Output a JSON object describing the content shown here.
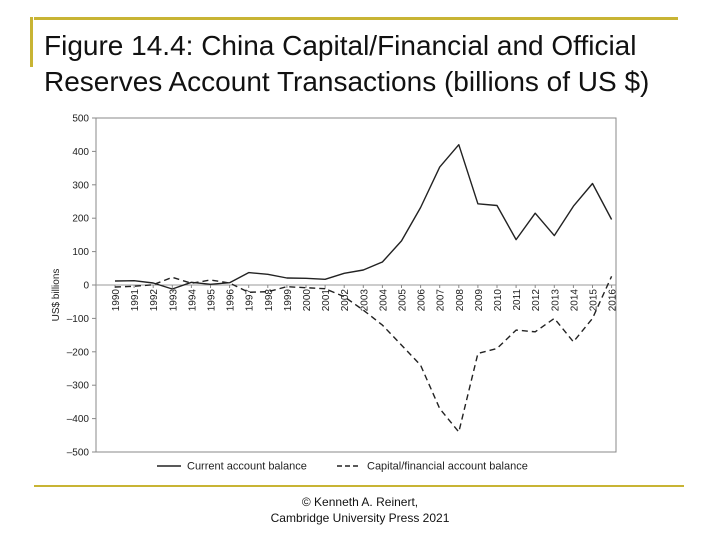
{
  "slide": {
    "title": "Figure 14.4: China Capital/Financial and Official Reserves Account Transactions (billions of US $)",
    "credit_line1": "© Kenneth A. Reinert,",
    "credit_line2": "Cambridge University Press 2021",
    "accent_color": "#c8b434"
  },
  "chart_data": {
    "type": "line",
    "title": "",
    "xlabel": "",
    "ylabel": "US$ billions",
    "ylim": [
      -500,
      500
    ],
    "yticks": [
      500,
      400,
      300,
      200,
      100,
      0,
      -100,
      -200,
      -300,
      -400,
      -500
    ],
    "ytick_labels": [
      "500",
      "400",
      "300",
      "200",
      "100",
      "0",
      "–100",
      "–200",
      "–300",
      "–400",
      "–500"
    ],
    "categories": [
      "1990",
      "1991",
      "1992",
      "1993",
      "1994",
      "1995",
      "1996",
      "1997",
      "1998",
      "1999",
      "2000",
      "2001",
      "2002",
      "2003",
      "2004",
      "2005",
      "2006",
      "2007",
      "2008",
      "2009",
      "2010",
      "2011",
      "2012",
      "2013",
      "2014",
      "2015",
      "2016"
    ],
    "legend_position": "bottom",
    "grid": false,
    "series": [
      {
        "name": "Current account balance",
        "style": "solid",
        "color": "#222222",
        "values": [
          12,
          13,
          6,
          -12,
          8,
          2,
          7,
          37,
          32,
          21,
          20,
          17,
          35,
          45,
          69,
          132,
          232,
          353,
          420,
          243,
          238,
          136,
          215,
          148,
          236,
          304,
          196
        ]
      },
      {
        "name": "Capital/financial account balance",
        "style": "dashed",
        "color": "#222222",
        "values": [
          -6,
          -4,
          1,
          23,
          5,
          15,
          6,
          -22,
          -20,
          -5,
          -8,
          -11,
          -35,
          -75,
          -120,
          -180,
          -240,
          -370,
          -440,
          -205,
          -190,
          -135,
          -140,
          -100,
          -170,
          -100,
          26
        ]
      }
    ]
  }
}
